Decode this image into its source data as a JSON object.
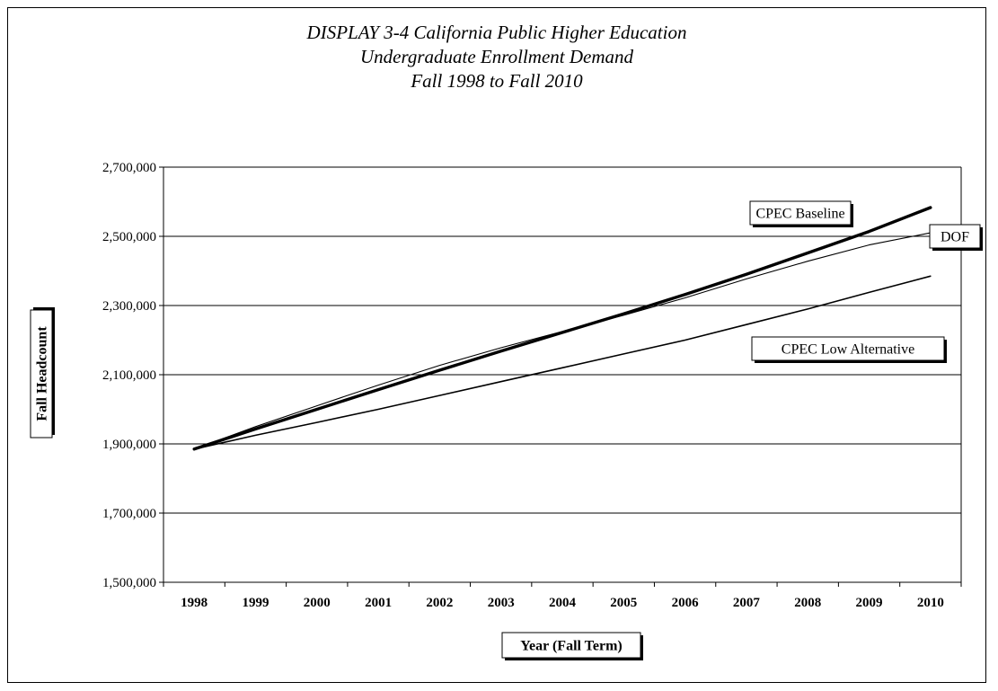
{
  "chart_data": {
    "type": "line",
    "title_lines": [
      "DISPLAY 3-4 California Public Higher Education",
      "Undergraduate Enrollment Demand",
      "Fall 1998 to Fall 2010"
    ],
    "xlabel": "Year (Fall Term)",
    "ylabel": "Fall Headcount",
    "x": [
      1998,
      1999,
      2000,
      2001,
      2002,
      2003,
      2004,
      2005,
      2006,
      2007,
      2008,
      2009,
      2010
    ],
    "x_tick_labels": [
      "1998",
      "1999",
      "2000",
      "2001",
      "2002",
      "2003",
      "2004",
      "2005",
      "2006",
      "2007",
      "2008",
      "2009",
      "2010"
    ],
    "ylim": [
      1500000,
      2700000
    ],
    "y_ticks": [
      1500000,
      1700000,
      1900000,
      2100000,
      2300000,
      2500000,
      2700000
    ],
    "y_tick_labels": [
      "1,500,000",
      "1,700,000",
      "1,900,000",
      "2,100,000",
      "2,300,000",
      "2,500,000",
      "2,700,000"
    ],
    "grid": true,
    "series": [
      {
        "name": "CPEC Baseline",
        "values": [
          1885000,
          1943000,
          2000000,
          2057000,
          2113000,
          2168000,
          2222000,
          2276000,
          2332000,
          2390000,
          2452000,
          2514000,
          2583000
        ],
        "color": "#000000",
        "weight": "heavy"
      },
      {
        "name": "DOF",
        "values": [
          1885000,
          1950000,
          2010000,
          2070000,
          2127000,
          2178000,
          2225000,
          2272000,
          2322000,
          2377000,
          2428000,
          2475000,
          2510000
        ],
        "color": "#000000",
        "weight": "thin"
      },
      {
        "name": "CPEC Low Alternative",
        "values": [
          1885000,
          1925000,
          1962000,
          2000000,
          2040000,
          2080000,
          2120000,
          2160000,
          2200000,
          2245000,
          2290000,
          2338000,
          2385000
        ],
        "color": "#000000",
        "weight": "medium"
      }
    ]
  }
}
